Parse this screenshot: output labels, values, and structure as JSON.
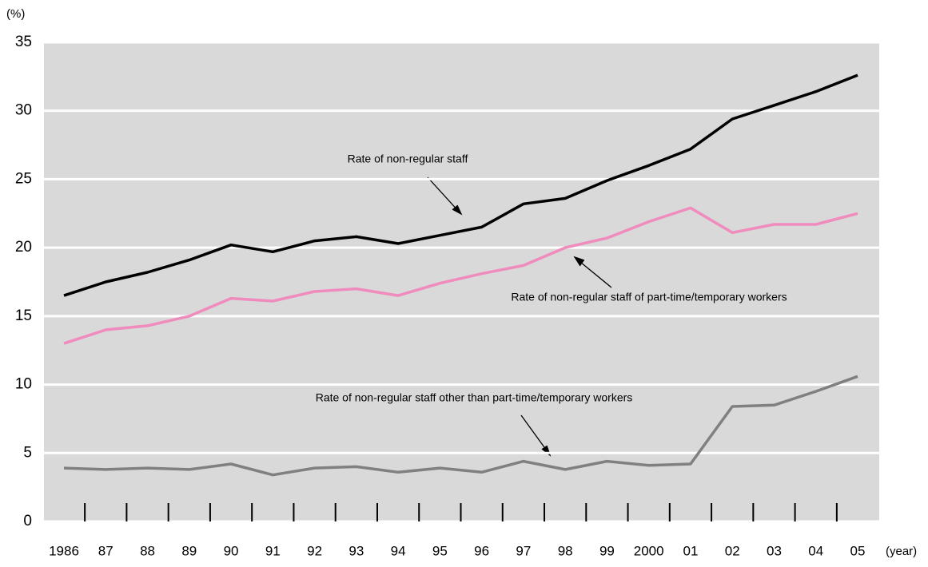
{
  "chart_data": {
    "type": "line",
    "y_label": "(%)",
    "x_label": "(year)",
    "categories": [
      "1986",
      "87",
      "88",
      "89",
      "90",
      "91",
      "92",
      "93",
      "94",
      "95",
      "96",
      "97",
      "98",
      "99",
      "2000",
      "01",
      "02",
      "03",
      "04",
      "05"
    ],
    "series": [
      {
        "name": "Rate of non-regular staff",
        "color": "#000000",
        "values": [
          16.5,
          17.5,
          18.2,
          19.1,
          20.2,
          19.7,
          20.5,
          20.8,
          20.3,
          20.9,
          21.5,
          23.2,
          23.6,
          24.9,
          26.0,
          27.2,
          29.4,
          30.4,
          31.4,
          32.6
        ]
      },
      {
        "name": "Rate of non-regular staff of part-time/temporary workers",
        "color": "#f08bbd",
        "values": [
          13.0,
          14.0,
          14.3,
          15.0,
          16.3,
          16.1,
          16.8,
          17.0,
          16.5,
          17.4,
          18.1,
          18.7,
          20.0,
          20.7,
          21.9,
          22.9,
          21.1,
          21.7,
          21.7,
          22.5
        ]
      },
      {
        "name": "Rate of non-regular staff other than part-time/temporary workers",
        "color": "#808080",
        "values": [
          3.9,
          3.8,
          3.9,
          3.8,
          4.2,
          3.4,
          3.9,
          4.0,
          3.6,
          3.9,
          3.6,
          4.4,
          3.8,
          4.4,
          4.1,
          4.2,
          8.4,
          8.5,
          9.5,
          10.6
        ]
      }
    ],
    "ylim": [
      0,
      35
    ],
    "yticks": [
      0,
      5,
      10,
      15,
      20,
      25,
      30,
      35
    ],
    "grid": true
  }
}
